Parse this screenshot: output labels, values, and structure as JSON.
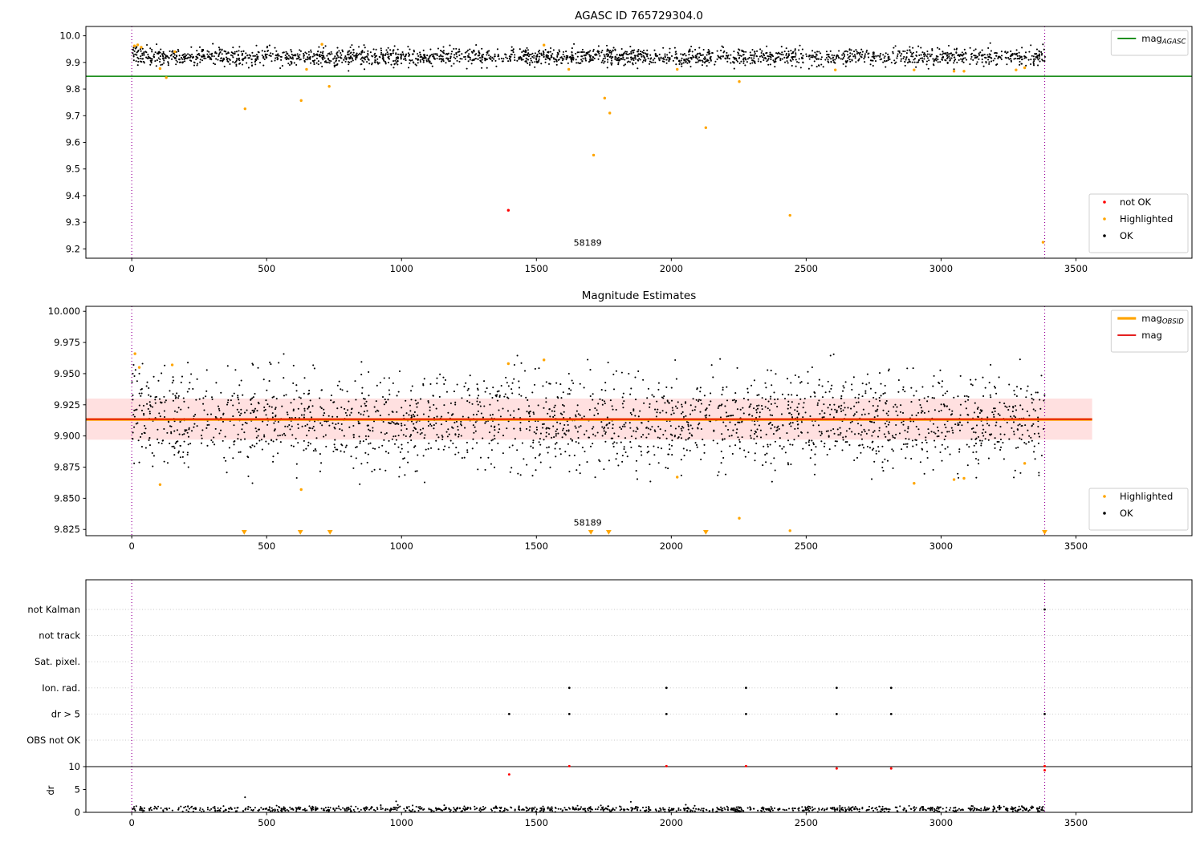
{
  "page": {
    "type": "matplotlib-figure",
    "background": "#ffffff"
  },
  "colors": {
    "ok": "#000000",
    "highlighted": "#ffa500",
    "not_ok": "#ff0000",
    "agasc_line": "#008000",
    "mag_line": "#e00000",
    "obsid_line": "#ffa500",
    "band": "rgba(255,0,0,0.12)",
    "vline": "#990099",
    "grid": "#c8c8c8",
    "spine": "#000000",
    "text": "#000000"
  },
  "chart_data": [
    {
      "id": "agasc-mag-plot",
      "type": "scatter",
      "title": "AGASC ID 765729304.0",
      "xlim": [
        -170,
        3930
      ],
      "ylim": [
        9.165,
        10.035
      ],
      "xticks": [
        0,
        500,
        1000,
        1500,
        2000,
        2500,
        3000,
        3500
      ],
      "yticks": [
        10.0,
        9.9,
        9.8,
        9.7,
        9.6,
        9.5,
        9.4,
        9.3,
        9.2
      ],
      "ytick_decimals": 1,
      "vlines": [
        0,
        3384
      ],
      "hlines": [
        {
          "y": 9.848,
          "color_key": "agasc_line",
          "width": 1.6,
          "label": "mag",
          "label_sub": "AGASC"
        }
      ],
      "annotation": {
        "text": "58189",
        "x": 1690,
        "y": 9.212
      },
      "cloud": {
        "n": 2200,
        "x_range": [
          0,
          3386
        ],
        "mean": 9.921,
        "sigma": 0.016,
        "clip": [
          9.868,
          9.976
        ],
        "seed": 42
      },
      "extra_ok_points": [
        [
          4,
          9.948
        ],
        [
          7,
          9.955
        ],
        [
          11,
          9.96
        ],
        [
          14,
          9.952
        ],
        [
          18,
          9.958
        ],
        [
          25,
          9.945
        ],
        [
          32,
          9.95
        ],
        [
          45,
          9.938
        ],
        [
          60,
          9.93
        ]
      ],
      "highlighted_points": [
        [
          10,
          9.962
        ],
        [
          22,
          9.966
        ],
        [
          35,
          9.957
        ],
        [
          105,
          9.877
        ],
        [
          128,
          9.843
        ],
        [
          160,
          9.94
        ],
        [
          420,
          9.726
        ],
        [
          628,
          9.757
        ],
        [
          648,
          9.874
        ],
        [
          705,
          9.968
        ],
        [
          732,
          9.81
        ],
        [
          1528,
          9.965
        ],
        [
          1620,
          9.874
        ],
        [
          1712,
          9.552
        ],
        [
          1753,
          9.766
        ],
        [
          1772,
          9.71
        ],
        [
          2022,
          9.874
        ],
        [
          2128,
          9.655
        ],
        [
          2252,
          9.828
        ],
        [
          2440,
          9.326
        ],
        [
          2608,
          9.872
        ],
        [
          2900,
          9.872
        ],
        [
          3048,
          9.867
        ],
        [
          3085,
          9.867
        ],
        [
          3278,
          9.872
        ],
        [
          3310,
          9.88
        ],
        [
          3378,
          9.225
        ]
      ],
      "not_ok_points": [
        [
          1396,
          9.345
        ]
      ],
      "legend_top": {
        "entries": [
          {
            "type": "line",
            "color_key": "agasc_line",
            "label": "mag",
            "sub": "AGASC"
          }
        ]
      },
      "legend_bottom": {
        "entries": [
          {
            "type": "dot",
            "color_key": "not_ok",
            "label": "not OK"
          },
          {
            "type": "dot",
            "color_key": "highlighted",
            "label": "Highlighted"
          },
          {
            "type": "dot",
            "color_key": "ok",
            "label": "OK"
          }
        ]
      }
    },
    {
      "id": "magnitude-estimates-plot",
      "type": "scatter",
      "title": "Magnitude Estimates",
      "xlim": [
        -170,
        3930
      ],
      "ylim": [
        9.82,
        10.004
      ],
      "xticks": [
        0,
        500,
        1000,
        1500,
        2000,
        2500,
        3000,
        3500
      ],
      "yticks": [
        10.0,
        9.975,
        9.95,
        9.925,
        9.9,
        9.875,
        9.85,
        9.825
      ],
      "ytick_decimals": 3,
      "vlines": [
        0,
        3384
      ],
      "band": {
        "x": [
          -170,
          3560
        ],
        "y": [
          9.897,
          9.93
        ]
      },
      "hlines": [
        {
          "y": 9.9132,
          "x": [
            -170,
            3560
          ],
          "color_key": "obsid_line",
          "width": 3.2,
          "label": "mag",
          "label_sub": "OBSID"
        },
        {
          "y": 9.9135,
          "x": [
            -170,
            3560
          ],
          "color_key": "mag_line",
          "width": 1.7,
          "label": "mag"
        }
      ],
      "annotation": {
        "text": "58189",
        "x": 1690,
        "y": 9.828
      },
      "cloud": {
        "n": 2200,
        "x_range": [
          0,
          3386
        ],
        "mean": 9.9125,
        "sigma": 0.0185,
        "clip": [
          9.858,
          9.967
        ],
        "seed": 77
      },
      "extra_ok_points": [
        [
          4,
          9.95
        ],
        [
          7,
          9.957
        ],
        [
          10,
          9.948
        ],
        [
          14,
          9.953
        ],
        [
          20,
          9.944
        ],
        [
          28,
          9.95
        ],
        [
          40,
          9.958
        ],
        [
          55,
          9.94
        ]
      ],
      "highlighted_points": [
        [
          12,
          9.966
        ],
        [
          28,
          9.955
        ],
        [
          105,
          9.861
        ],
        [
          150,
          9.957
        ],
        [
          628,
          9.857
        ],
        [
          1396,
          9.958
        ],
        [
          1528,
          9.961
        ],
        [
          2022,
          9.867
        ],
        [
          2252,
          9.834
        ],
        [
          2440,
          9.824
        ],
        [
          2900,
          9.862
        ],
        [
          3048,
          9.865
        ],
        [
          3085,
          9.866
        ],
        [
          3310,
          9.878
        ]
      ],
      "clipped_low_x": [
        417,
        625,
        735,
        1702,
        1768,
        2128,
        3384
      ],
      "legend_top": {
        "entries": [
          {
            "type": "line",
            "color_key": "obsid_line",
            "label": "mag",
            "sub": "OBSID",
            "thick": true
          },
          {
            "type": "line",
            "color_key": "mag_line",
            "label": "mag"
          }
        ]
      },
      "legend_bottom": {
        "entries": [
          {
            "type": "dot",
            "color_key": "highlighted",
            "label": "Highlighted"
          },
          {
            "type": "dot",
            "color_key": "ok",
            "label": "OK"
          }
        ]
      }
    },
    {
      "id": "flags-plot",
      "type": "flags",
      "xlim": [
        -170,
        3930
      ],
      "xticks": [
        0,
        500,
        1000,
        1500,
        2000,
        2500,
        3000,
        3500
      ],
      "categories": [
        "not Kalman",
        "not track",
        "Sat. pixel.",
        "Ion. rad.",
        "dr > 5",
        "OBS not OK"
      ],
      "dr_ticks": [
        10,
        5,
        0
      ],
      "dr_label": "dr",
      "threshold": 10,
      "vlines": [
        0,
        3384
      ],
      "category_points": {
        "not Kalman": [
          3384
        ],
        "Ion. rad.": [
          1622,
          1982,
          2277,
          2613,
          2815
        ],
        "dr > 5": [
          1399,
          1622,
          1982,
          2277,
          2613,
          2815,
          3384
        ]
      },
      "dr_red_points": [
        [
          1399,
          8.3
        ],
        [
          1622,
          10.1
        ],
        [
          1982,
          10.1
        ],
        [
          2277,
          10.1
        ],
        [
          2613,
          9.6
        ],
        [
          2815,
          9.6
        ],
        [
          3384,
          10.1
        ],
        [
          3384,
          9.2
        ]
      ],
      "dr_cloud": {
        "n": 1000,
        "x_range": [
          0,
          3386
        ],
        "mean": 0.7,
        "sigma": 0.32,
        "clip": [
          0.05,
          2.1
        ],
        "seed": 9
      },
      "dr_outliers": [
        [
          420,
          3.3
        ],
        [
          980,
          2.4
        ],
        [
          1850,
          2.3
        ]
      ]
    }
  ]
}
